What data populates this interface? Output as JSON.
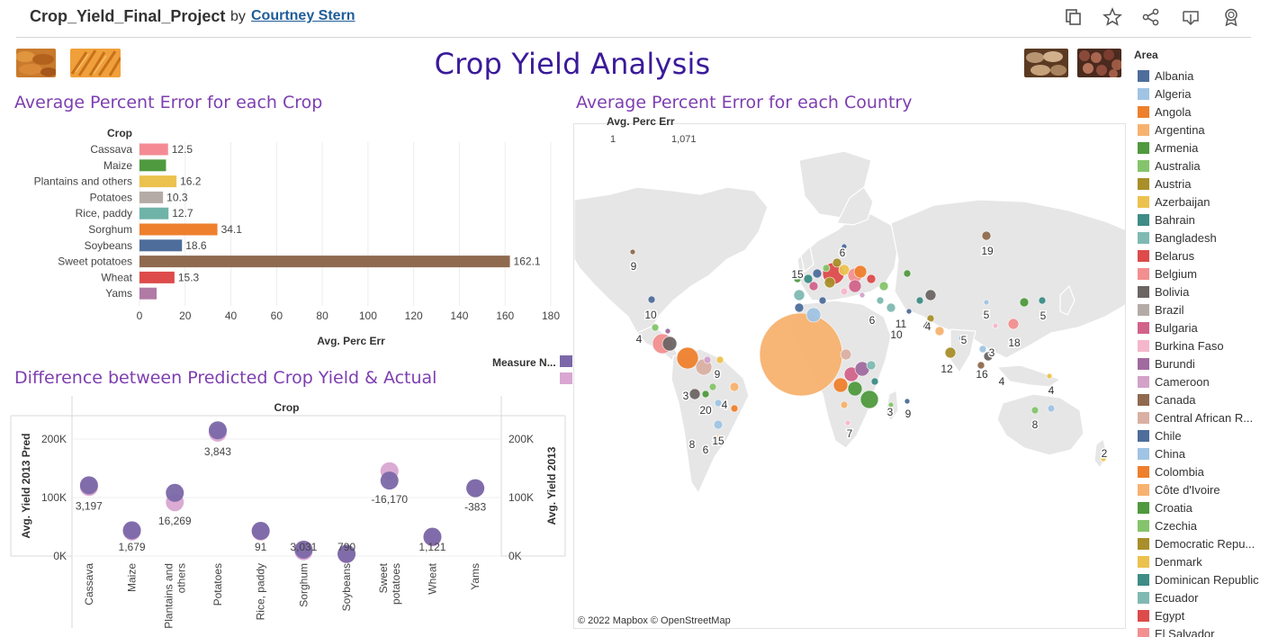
{
  "header": {
    "title": "Crop_Yield_Final_Project",
    "by": "by",
    "author": "Courtney Stern"
  },
  "dashboard_title": "Crop Yield Analysis",
  "sections": {
    "bar_title": "Average Percent Error for each Crop",
    "map_title": "Average Percent Error for each Country",
    "dot_title": "Difference between Predicted Crop Yield & Actual"
  },
  "map": {
    "size_legend_label": "Avg. Perc Err",
    "size_min": "1",
    "size_max": "1,071",
    "attribution": "© 2022 Mapbox  © OpenStreetMap",
    "ocean_color": "#ffffff",
    "land_color": "#e6e6e6",
    "labels": [
      {
        "text": "19"
      },
      {
        "text": "9"
      },
      {
        "text": "15"
      },
      {
        "text": "6"
      },
      {
        "text": "10"
      },
      {
        "text": "4"
      },
      {
        "text": "5"
      },
      {
        "text": "5"
      },
      {
        "text": "6"
      },
      {
        "text": "11"
      },
      {
        "text": "4"
      },
      {
        "text": "10"
      },
      {
        "text": "4"
      },
      {
        "text": "5"
      },
      {
        "text": "18"
      },
      {
        "text": "12"
      },
      {
        "text": "3"
      },
      {
        "text": "16"
      },
      {
        "text": "4"
      },
      {
        "text": "4"
      },
      {
        "text": "9"
      },
      {
        "text": "3"
      },
      {
        "text": "20"
      },
      {
        "text": "4"
      },
      {
        "text": "3"
      },
      {
        "text": "9"
      },
      {
        "text": "8"
      },
      {
        "text": "15"
      },
      {
        "text": "6"
      },
      {
        "text": "7"
      },
      {
        "text": "8"
      },
      {
        "text": "2"
      }
    ]
  },
  "measure_legend": {
    "label": "Measure N...",
    "colors": [
      "#7b68a8",
      "#d9a6d1"
    ]
  },
  "legend": {
    "title": "Area",
    "items": [
      {
        "name": "Albania",
        "color": "#4e6d9b"
      },
      {
        "name": "Algeria",
        "color": "#a0c4e4"
      },
      {
        "name": "Angola",
        "color": "#ee7f2d"
      },
      {
        "name": "Argentina",
        "color": "#f7b26f"
      },
      {
        "name": "Armenia",
        "color": "#4f9a3e"
      },
      {
        "name": "Australia",
        "color": "#85c46b"
      },
      {
        "name": "Austria",
        "color": "#a88f2a"
      },
      {
        "name": "Azerbaijan",
        "color": "#ecc24e"
      },
      {
        "name": "Bahrain",
        "color": "#3e8c86"
      },
      {
        "name": "Bangladesh",
        "color": "#7fb9b2"
      },
      {
        "name": "Belarus",
        "color": "#dd4b4b"
      },
      {
        "name": "Belgium",
        "color": "#f28f8f"
      },
      {
        "name": "Bolivia",
        "color": "#6b6564"
      },
      {
        "name": "Brazil",
        "color": "#b5aba6"
      },
      {
        "name": "Bulgaria",
        "color": "#d1638a"
      },
      {
        "name": "Burkina Faso",
        "color": "#f5b7cc"
      },
      {
        "name": "Burundi",
        "color": "#a06b9e"
      },
      {
        "name": "Cameroon",
        "color": "#d3a2c8"
      },
      {
        "name": "Canada",
        "color": "#8f6a4f"
      },
      {
        "name": "Central African R...",
        "color": "#d9b0a2"
      },
      {
        "name": "Chile",
        "color": "#4e6d9b"
      },
      {
        "name": "China",
        "color": "#a0c4e4"
      },
      {
        "name": "Colombia",
        "color": "#ee7f2d"
      },
      {
        "name": "Côte d'Ivoire",
        "color": "#f7b26f"
      },
      {
        "name": "Croatia",
        "color": "#4f9a3e"
      },
      {
        "name": "Czechia",
        "color": "#85c46b"
      },
      {
        "name": "Democratic Repu...",
        "color": "#a88f2a"
      },
      {
        "name": "Denmark",
        "color": "#ecc24e"
      },
      {
        "name": "Dominican Republic",
        "color": "#3e8c86"
      },
      {
        "name": "Ecuador",
        "color": "#7fb9b2"
      },
      {
        "name": "Egypt",
        "color": "#dd4b4b"
      },
      {
        "name": "El Salvador",
        "color": "#f28f8f"
      }
    ]
  },
  "chart_data": [
    {
      "type": "bar",
      "title": "Average Percent Error for each Crop",
      "category_label": "Crop",
      "xlabel": "Avg. Perc Err",
      "xlim": [
        0,
        180
      ],
      "xticks": [
        0,
        20,
        40,
        60,
        80,
        100,
        120,
        140,
        160,
        180
      ],
      "grid": true,
      "bars": [
        {
          "category": "Cassava",
          "value": 12.5,
          "label": "12.5",
          "color": "#f48b94"
        },
        {
          "category": "Maize",
          "value": 11.6,
          "label": "",
          "color": "#4f9a3e"
        },
        {
          "category": "Plantains and others",
          "value": 16.2,
          "label": "16.2",
          "color": "#ecc24e"
        },
        {
          "category": "Potatoes",
          "value": 10.3,
          "label": "10.3",
          "color": "#b5aba6"
        },
        {
          "category": "Rice, paddy",
          "value": 12.7,
          "label": "12.7",
          "color": "#6fb3a8"
        },
        {
          "category": "Sorghum",
          "value": 34.1,
          "label": "34.1",
          "color": "#ee7f2d"
        },
        {
          "category": "Soybeans",
          "value": 18.6,
          "label": "18.6",
          "color": "#4e6d9b"
        },
        {
          "category": "Sweet potatoes",
          "value": 162.1,
          "label": "162.1",
          "color": "#8f6a4f"
        },
        {
          "category": "Wheat",
          "value": 15.3,
          "label": "15.3",
          "color": "#dd4b4b"
        },
        {
          "category": "Yams",
          "value": 7.5,
          "label": "",
          "color": "#b07aa5"
        }
      ]
    },
    {
      "type": "scatter",
      "title": "Difference between Predicted Crop Yield & Actual",
      "column_header": "Crop",
      "ylabel_left": "Avg. Yield 2013 Pred",
      "ylabel_right": "Avg. Yield 2013",
      "ylim": [
        0,
        240000
      ],
      "yticks": [
        {
          "value": 0,
          "label": "0K"
        },
        {
          "value": 100000,
          "label": "100K"
        },
        {
          "value": 200000,
          "label": "200K"
        }
      ],
      "categories": [
        "Cassava",
        "Maize",
        "Plantains and others",
        "Potatoes",
        "Rice, paddy",
        "Sorghum",
        "Soybeans",
        "Sweet potatoes",
        "Wheat",
        "Yams"
      ],
      "category_tick_labels": [
        [
          "Cassava"
        ],
        [
          "Maize"
        ],
        [
          "Plantains and",
          "others"
        ],
        [
          "Potatoes"
        ],
        [
          "Rice, paddy"
        ],
        [
          "Sorghum"
        ],
        [
          "Soybeans"
        ],
        [
          "Sweet",
          "potatoes"
        ],
        [
          "Wheat"
        ],
        [
          "Yams"
        ]
      ],
      "series": [
        {
          "color": "#d9a6d1",
          "values": [
            118000,
            42000,
            92000,
            211000,
            42000,
            8000,
            3000,
            145000,
            32000,
            116000
          ]
        },
        {
          "color": "#7b68a8",
          "values": [
            121000,
            44000,
            108000,
            215000,
            43000,
            11000,
            3800,
            129000,
            33000,
            116000
          ]
        }
      ],
      "difference_labels": [
        "3,197",
        "1,679",
        "16,269",
        "3,843",
        "91",
        "3,031",
        "790",
        "-16,170",
        "1,121",
        "-383"
      ]
    }
  ]
}
